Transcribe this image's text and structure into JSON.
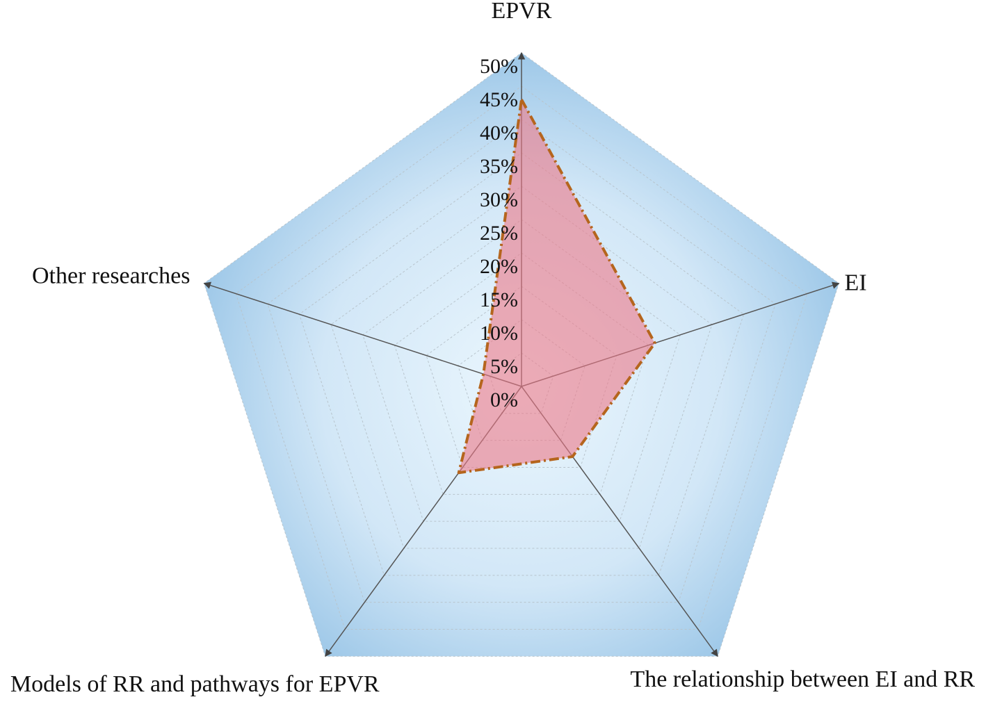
{
  "chart_data": {
    "type": "radar",
    "categories": [
      "EPVR",
      "EI",
      "The relationship between EI and RR",
      "Models of RR and pathways for EPVR",
      "Other researches"
    ],
    "series": [
      {
        "color": "#b5651d",
        "values": [
          43,
          21,
          13,
          16,
          6
        ]
      }
    ],
    "rlim": [
      0,
      50
    ],
    "rticks": [
      {
        "value": 0,
        "label": "0%"
      },
      {
        "value": 5,
        "label": "5%"
      },
      {
        "value": 10,
        "label": "10%"
      },
      {
        "value": 15,
        "label": "15%"
      },
      {
        "value": 20,
        "label": "20%"
      },
      {
        "value": 25,
        "label": "25%"
      },
      {
        "value": 30,
        "label": "30%"
      },
      {
        "value": 35,
        "label": "35%"
      },
      {
        "value": 40,
        "label": "40%"
      },
      {
        "value": 45,
        "label": "45%"
      },
      {
        "value": 50,
        "label": "50%"
      }
    ],
    "grid": true
  }
}
